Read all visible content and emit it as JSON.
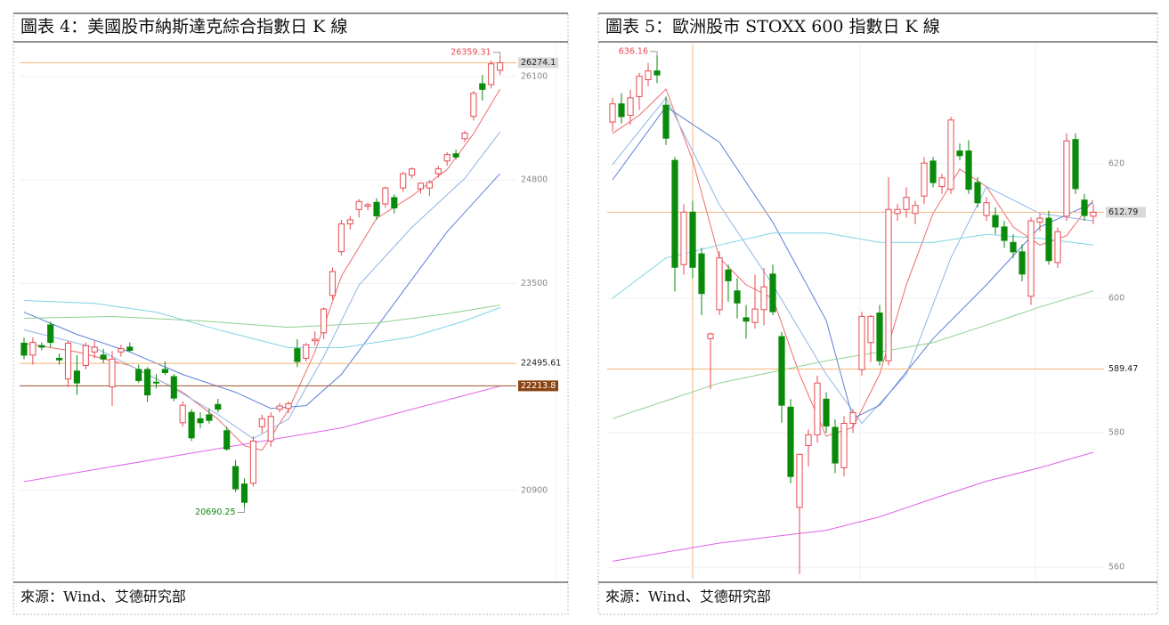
{
  "chart_data": [
    {
      "type": "candlestick",
      "title": "圖表 4：美國股市納斯達克綜合指數日 K 線",
      "source": "來源：Wind、艾德研究部",
      "up_color": "#e8494f",
      "down_color": "#0a8a0a",
      "ylim": [
        19790,
        26425
      ],
      "yticks": [
        20900,
        23500,
        24800,
        26100
      ],
      "grid": true,
      "ohlc": [
        [
          22750,
          22820,
          22550,
          22600
        ],
        [
          22600,
          22820,
          22480,
          22760
        ],
        [
          22720,
          22760,
          22660,
          22700
        ],
        [
          22980,
          23020,
          22700,
          22760
        ],
        [
          22560,
          22620,
          22480,
          22540
        ],
        [
          22300,
          22780,
          22200,
          22750
        ],
        [
          22400,
          22600,
          22100,
          22250
        ],
        [
          22470,
          22760,
          22420,
          22720
        ],
        [
          22640,
          22780,
          22560,
          22700
        ],
        [
          22600,
          22680,
          22500,
          22550
        ],
        [
          22200,
          22650,
          21960,
          22550
        ],
        [
          22640,
          22730,
          22580,
          22680
        ],
        [
          22700,
          22760,
          22640,
          22660
        ],
        [
          22420,
          22480,
          22250,
          22280
        ],
        [
          22420,
          22450,
          22010,
          22100
        ],
        [
          22260,
          22360,
          22180,
          22250
        ],
        [
          22420,
          22520,
          22350,
          22380
        ],
        [
          22330,
          22360,
          22020,
          22060
        ],
        [
          21750,
          22020,
          21700,
          21970
        ],
        [
          21880,
          21920,
          21520,
          21560
        ],
        [
          21800,
          21880,
          21680,
          21750
        ],
        [
          21850,
          21930,
          21740,
          21780
        ],
        [
          21980,
          22050,
          21880,
          21920
        ],
        [
          21650,
          21700,
          21400,
          21420
        ],
        [
          21200,
          21280,
          20880,
          20920
        ],
        [
          20980,
          21050,
          20690.25,
          20750
        ],
        [
          20990,
          21580,
          20950,
          21520
        ],
        [
          21700,
          21850,
          21620,
          21800
        ],
        [
          21520,
          21880,
          21450,
          21830
        ],
        [
          21920,
          22000,
          21880,
          21960
        ],
        [
          21930,
          22020,
          21870,
          21990
        ],
        [
          22680,
          22800,
          22450,
          22520
        ],
        [
          22560,
          22750,
          22520,
          22730
        ],
        [
          22780,
          22900,
          22720,
          22800
        ],
        [
          22880,
          23200,
          22800,
          23180
        ],
        [
          23350,
          23700,
          23300,
          23650
        ],
        [
          23900,
          24300,
          23850,
          24250
        ],
        [
          24250,
          24350,
          24180,
          24300
        ],
        [
          24430,
          24560,
          24330,
          24530
        ],
        [
          24470,
          24520,
          24420,
          24490
        ],
        [
          24520,
          24570,
          24300,
          24350
        ],
        [
          24500,
          24720,
          24450,
          24700
        ],
        [
          24580,
          24620,
          24380,
          24450
        ],
        [
          24700,
          24900,
          24650,
          24880
        ],
        [
          24860,
          24960,
          24820,
          24940
        ],
        [
          24690,
          24770,
          24630,
          24760
        ],
        [
          24700,
          24800,
          24600,
          24770
        ],
        [
          24880,
          24980,
          24830,
          24940
        ],
        [
          25040,
          25150,
          24980,
          25120
        ],
        [
          25130,
          25180,
          25060,
          25090
        ],
        [
          25320,
          25420,
          25280,
          25390
        ],
        [
          25600,
          25920,
          25550,
          25890
        ],
        [
          26010,
          26120,
          25800,
          25940
        ],
        [
          26000,
          26300,
          25950,
          26260
        ],
        [
          26180,
          26359.31,
          26120,
          26274.1
        ]
      ],
      "lines": [
        {
          "color": "#ee6b6e",
          "x": [
            0,
            6,
            12,
            18,
            22,
            25,
            27,
            30,
            33,
            36,
            40,
            44,
            48,
            51,
            54
          ],
          "values": [
            22750,
            22640,
            22470,
            22133,
            21795,
            21460,
            21404,
            21910,
            22640,
            23590,
            24318,
            24600,
            24934,
            25383,
            25943
          ]
        },
        {
          "color": "#8fb4e6",
          "x": [
            0,
            8,
            16,
            22,
            26,
            30,
            34,
            38,
            44,
            50,
            54
          ],
          "values": [
            22918,
            22693,
            22245,
            21853,
            21550,
            21795,
            22580,
            23480,
            24205,
            24820,
            25405
          ]
        },
        {
          "color": "#5b7fd6",
          "x": [
            0,
            6,
            12,
            18,
            24,
            28,
            32,
            36,
            42,
            48,
            54
          ],
          "values": [
            23140,
            22860,
            22640,
            22357,
            22133,
            21930,
            21965,
            22357,
            23250,
            24150,
            24880
          ]
        },
        {
          "color": "#7fd3e6",
          "x": [
            0,
            8,
            15,
            22,
            30,
            36,
            44,
            50,
            54
          ],
          "values": [
            23287,
            23250,
            23140,
            22920,
            22693,
            22693,
            22828,
            23030,
            23197
          ]
        },
        {
          "color": "#8fd08f",
          "x": [
            0,
            10,
            20,
            30,
            40,
            48,
            54
          ],
          "values": [
            23063,
            23085,
            23030,
            22950,
            23005,
            23120,
            23230
          ]
        },
        {
          "color": "#e060e8",
          "x": [
            0,
            18,
            36,
            54
          ],
          "values": [
            21010,
            21350,
            21685,
            22210
          ]
        }
      ],
      "ref_lines": [
        {
          "value": 26274.1,
          "color": "#f5b57a",
          "label_bg": "#d9d9d9",
          "label_color": "#222"
        },
        {
          "value": 22495.61,
          "color": "#f5b57a",
          "label_color": "#222"
        },
        {
          "value": 22213.8,
          "color": "#a0522d",
          "label_bg": "#8b4513",
          "label_color": "#fff"
        }
      ],
      "high": {
        "value": 26359.31,
        "color": "#e8494f"
      },
      "low": {
        "value": 20690.25,
        "color": "#0a8a0a"
      }
    },
    {
      "type": "candlestick",
      "title": "圖表 5：歐洲股市 STOXX 600 指數日 K 線",
      "source": "來源：Wind、艾德研究部",
      "up_color": "#e8494f",
      "down_color": "#0a8a0a",
      "ylim": [
        558.3,
        636.8
      ],
      "yticks": [
        560,
        580,
        600,
        620
      ],
      "grid": true,
      "ohlc": [
        [
          626.2,
          629.8,
          624.8,
          628.9
        ],
        [
          628.9,
          630.5,
          626.0,
          627.0
        ],
        [
          627.2,
          631.0,
          625.8,
          629.8
        ],
        [
          630.0,
          633.5,
          628.0,
          633.0
        ],
        [
          632.5,
          635.0,
          631.5,
          633.8
        ],
        [
          633.8,
          636.16,
          632.0,
          633.2
        ],
        [
          628.7,
          630.0,
          622.8,
          623.8
        ],
        [
          620.5,
          621.0,
          601.0,
          604.6
        ],
        [
          605.0,
          614.0,
          603.5,
          612.8
        ],
        [
          612.8,
          614.5,
          603.0,
          604.6
        ],
        [
          606.6,
          607.5,
          597.5,
          600.7
        ],
        [
          594.0,
          594.9,
          586.5,
          594.7
        ],
        [
          598.3,
          607.0,
          597.5,
          606.0
        ],
        [
          604.2,
          605.0,
          599.5,
          602.6
        ],
        [
          601.1,
          603.0,
          597.0,
          599.3
        ],
        [
          597.1,
          599.0,
          594.0,
          596.6
        ],
        [
          596.4,
          603.5,
          595.5,
          598.4
        ],
        [
          598.3,
          604.5,
          596.0,
          601.7
        ],
        [
          603.6,
          605.0,
          597.5,
          598.0
        ],
        [
          594.3,
          595.0,
          581.5,
          584.1
        ],
        [
          583.8,
          585.0,
          572.5,
          573.5
        ],
        [
          568.9,
          576.8,
          559.0,
          576.8
        ],
        [
          578.1,
          580.5,
          575.0,
          579.7
        ],
        [
          579.7,
          588.5,
          578.5,
          587.4
        ],
        [
          585.0,
          586.0,
          580.0,
          581.0
        ],
        [
          580.8,
          582.0,
          574.0,
          575.5
        ],
        [
          574.8,
          582.5,
          573.5,
          581.4
        ],
        [
          581.4,
          583.5,
          580.0,
          583.0
        ],
        [
          589.4,
          598.0,
          588.5,
          597.3
        ],
        [
          593.4,
          597.5,
          590.5,
          597.3
        ],
        [
          597.8,
          599.0,
          590.0,
          590.7
        ],
        [
          590.7,
          618.0,
          590.0,
          613.2
        ],
        [
          612.6,
          614.0,
          611.5,
          613.2
        ],
        [
          613.2,
          616.5,
          612.0,
          615.0
        ],
        [
          612.6,
          614.5,
          611.0,
          613.8
        ],
        [
          615.2,
          621.0,
          614.0,
          620.1
        ],
        [
          620.4,
          621.0,
          616.5,
          617.2
        ],
        [
          616.6,
          618.5,
          615.5,
          617.9
        ],
        [
          616.2,
          627.0,
          615.5,
          626.5
        ],
        [
          621.9,
          623.0,
          620.5,
          621.2
        ],
        [
          621.9,
          623.5,
          615.5,
          616.2
        ],
        [
          617.2,
          618.0,
          613.5,
          614.2
        ],
        [
          612.3,
          615.0,
          611.5,
          614.2
        ],
        [
          612.3,
          613.5,
          609.5,
          610.6
        ],
        [
          610.6,
          611.5,
          607.5,
          608.6
        ],
        [
          608.3,
          609.5,
          606.0,
          606.9
        ],
        [
          606.9,
          608.0,
          602.5,
          603.6
        ],
        [
          600.3,
          612.0,
          599.0,
          611.5
        ],
        [
          611.3,
          612.5,
          610.0,
          611.9
        ],
        [
          611.9,
          613.0,
          605.0,
          605.6
        ],
        [
          605.3,
          610.5,
          604.5,
          609.9
        ],
        [
          612.2,
          624.5,
          611.5,
          623.4
        ],
        [
          623.6,
          624.5,
          615.5,
          616.3
        ],
        [
          614.6,
          615.5,
          611.5,
          612.3
        ],
        [
          612.2,
          614.0,
          611.0,
          612.79
        ]
      ],
      "lines": [
        {
          "color": "#ee6b6e",
          "x": [
            0,
            3,
            6,
            9,
            12,
            15,
            18,
            21,
            24,
            27,
            30,
            33,
            36,
            39,
            42,
            45,
            48,
            51,
            54
          ],
          "values": [
            624.5,
            627.2,
            631.1,
            620.5,
            606.0,
            602.0,
            600.0,
            588.7,
            579.5,
            580.8,
            588.7,
            602.0,
            612.6,
            619.2,
            616.6,
            610.6,
            607.9,
            609.3,
            614.6
          ]
        },
        {
          "color": "#8fb4e6",
          "x": [
            0,
            6,
            12,
            18,
            24,
            28,
            33,
            38,
            42,
            48,
            54
          ],
          "values": [
            619.9,
            629.8,
            613.9,
            602.0,
            588.7,
            581.4,
            588.7,
            606.0,
            616.6,
            612.6,
            611.5
          ]
        },
        {
          "color": "#5b7fd6",
          "x": [
            0,
            6,
            12,
            18,
            24,
            27,
            30,
            36,
            42,
            48,
            54
          ],
          "values": [
            617.6,
            628.5,
            623.2,
            611.3,
            596.7,
            582.1,
            584.1,
            594.0,
            602.0,
            610.6,
            614.2
          ]
        },
        {
          "color": "#7fd3e6",
          "x": [
            0,
            6,
            12,
            18,
            24,
            30,
            36,
            42,
            48,
            54
          ],
          "values": [
            600.0,
            606.0,
            607.9,
            609.7,
            609.7,
            608.3,
            608.3,
            609.5,
            608.9,
            607.9
          ]
        },
        {
          "color": "#8fd08f",
          "x": [
            0,
            12,
            24,
            30,
            36,
            42,
            48,
            54
          ],
          "values": [
            582.1,
            587.4,
            590.7,
            592.0,
            593.4,
            596.0,
            598.7,
            601.1
          ]
        },
        {
          "color": "#e060e8",
          "x": [
            0,
            12,
            24,
            30,
            36,
            42,
            48,
            54
          ],
          "values": [
            560.9,
            563.6,
            565.5,
            567.5,
            570.2,
            572.8,
            574.8,
            577.1
          ]
        }
      ],
      "ref_lines": [
        {
          "value": 612.79,
          "color": "#f5b57a",
          "label_bg": "#d9d9d9",
          "label_color": "#222"
        },
        {
          "value": 589.47,
          "color": "#f5b57a",
          "label_color": "#222"
        }
      ],
      "high": {
        "value": 636.16,
        "color": "#e8494f"
      }
    }
  ]
}
